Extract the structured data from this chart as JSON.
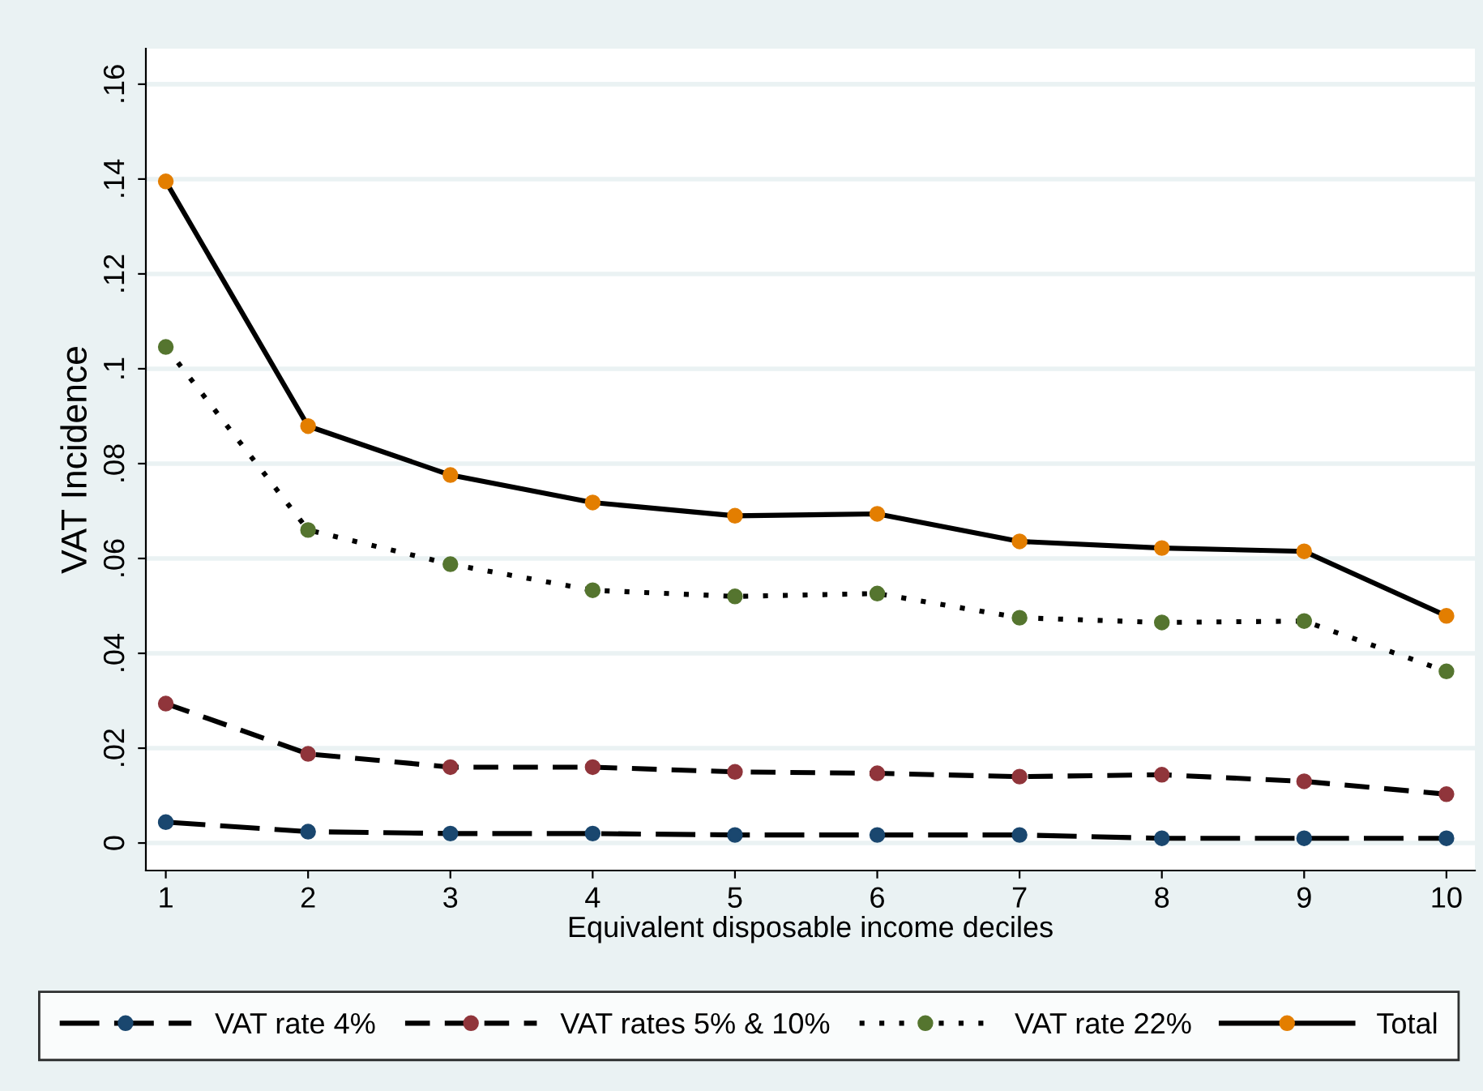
{
  "chart_data": {
    "type": "line",
    "xlabel": "Equivalent disposable income deciles",
    "ylabel": "VAT Incidence",
    "x": [
      1,
      2,
      3,
      4,
      5,
      6,
      7,
      8,
      9,
      10
    ],
    "xlim": [
      0.86,
      10.2
    ],
    "xticks": [
      1,
      2,
      3,
      4,
      5,
      6,
      7,
      8,
      9,
      10
    ],
    "ylim": [
      -0.0058,
      0.1675
    ],
    "yticks": [
      0,
      {
        "value": 0.02,
        "label": ".02"
      },
      {
        "value": 0.04,
        "label": ".04"
      },
      {
        "value": 0.06,
        "label": ".06"
      },
      {
        "value": 0.08,
        "label": ".08"
      },
      {
        "value": 0.1,
        "label": ".1"
      },
      {
        "value": 0.12,
        "label": ".12"
      },
      {
        "value": 0.14,
        "label": ".14"
      },
      {
        "value": 0.16,
        "label": ".16"
      }
    ],
    "grid": "y",
    "legend": "bottom",
    "marker": "circle",
    "series": [
      {
        "name": "VAT rate 4%",
        "color": "#1a476f",
        "line_style": "longdash",
        "values": [
          0.0044,
          0.0024,
          0.002,
          0.002,
          0.0017,
          0.0017,
          0.0017,
          0.001,
          0.001,
          0.001
        ]
      },
      {
        "name": "VAT rates 5% & 10%",
        "color": "#90353b",
        "line_style": "dashed",
        "values": [
          0.0294,
          0.0188,
          0.016,
          0.016,
          0.015,
          0.0147,
          0.014,
          0.0144,
          0.013,
          0.0103
        ]
      },
      {
        "name": "VAT rate 22%",
        "color": "#55752f",
        "line_style": "dotted",
        "values": [
          0.1046,
          0.066,
          0.0588,
          0.0533,
          0.052,
          0.0526,
          0.0475,
          0.0465,
          0.0468,
          0.0362
        ]
      },
      {
        "name": "Total",
        "color": "#e37e00",
        "line_style": "solid",
        "values": [
          0.1395,
          0.0879,
          0.0776,
          0.0718,
          0.069,
          0.0694,
          0.0636,
          0.0622,
          0.0615,
          0.0479
        ]
      }
    ]
  }
}
